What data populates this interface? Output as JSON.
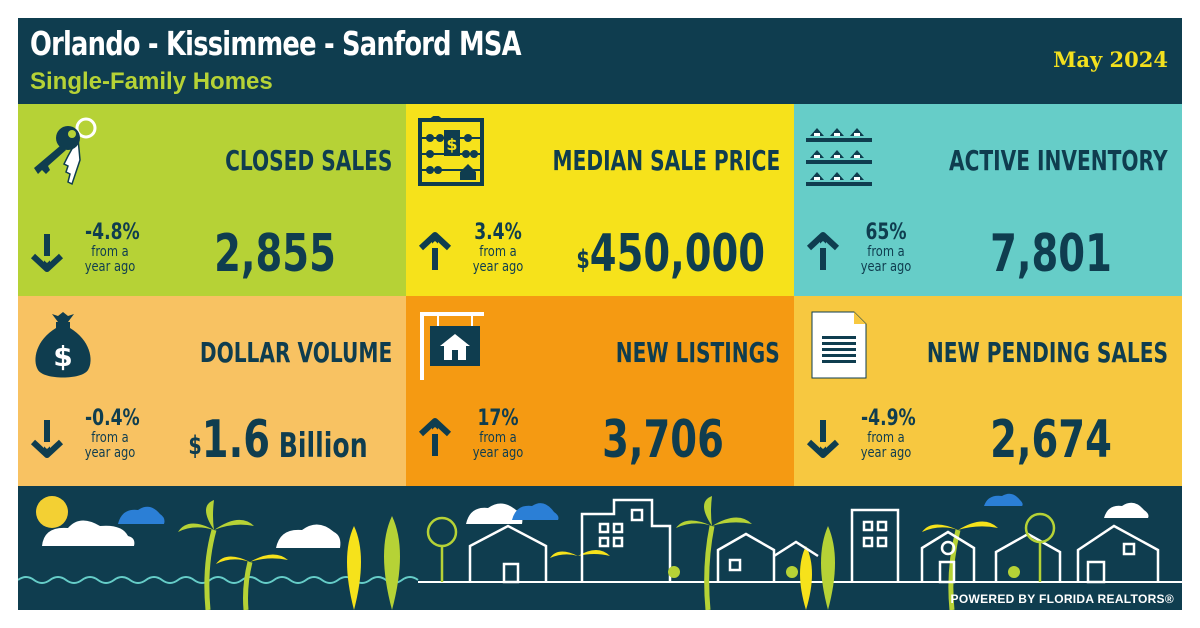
{
  "header": {
    "title": "Orlando - Kissimmee - Sanford MSA",
    "subtitle": "Single-Family Homes",
    "date": "May 2024"
  },
  "colors": {
    "navy": "#0f3d4f",
    "closed_sales": "#b6d236",
    "median_price": "#f6e21b",
    "active_inventory": "#66cdc8",
    "dollar_volume": "#f8c262",
    "new_listings": "#f59a12",
    "new_pending": "#f7c840"
  },
  "metrics": [
    {
      "label": "CLOSED SALES",
      "icon": "keys-icon",
      "direction": "down",
      "change": "-4.8%",
      "sub1": "from a",
      "sub2": "year ago",
      "prefix": "",
      "value": "2,855",
      "suffix": ""
    },
    {
      "label": "MEDIAN SALE PRICE",
      "icon": "abacus-icon",
      "direction": "up",
      "change": "3.4%",
      "sub1": "from a",
      "sub2": "year ago",
      "prefix": "$",
      "value": "450,000",
      "suffix": ""
    },
    {
      "label": "ACTIVE INVENTORY",
      "icon": "houses-shelf-icon",
      "direction": "up",
      "change": "65%",
      "sub1": "from a",
      "sub2": "year ago",
      "prefix": "",
      "value": "7,801",
      "suffix": ""
    },
    {
      "label": "DOLLAR VOLUME",
      "icon": "money-bag-icon",
      "direction": "down",
      "change": "-0.4%",
      "sub1": "from a",
      "sub2": "year ago",
      "prefix": "$",
      "value": "1.6",
      "suffix": " Billion"
    },
    {
      "label": "NEW LISTINGS",
      "icon": "house-sign-icon",
      "direction": "up",
      "change": "17%",
      "sub1": "from a",
      "sub2": "year ago",
      "prefix": "",
      "value": "3,706",
      "suffix": ""
    },
    {
      "label": "NEW PENDING SALES",
      "icon": "document-icon",
      "direction": "down",
      "change": "-4.9%",
      "sub1": "from a",
      "sub2": "year ago",
      "prefix": "",
      "value": "2,674",
      "suffix": ""
    }
  ],
  "footer": {
    "powered_by": "POWERED BY FLORIDA REALTORS®"
  }
}
